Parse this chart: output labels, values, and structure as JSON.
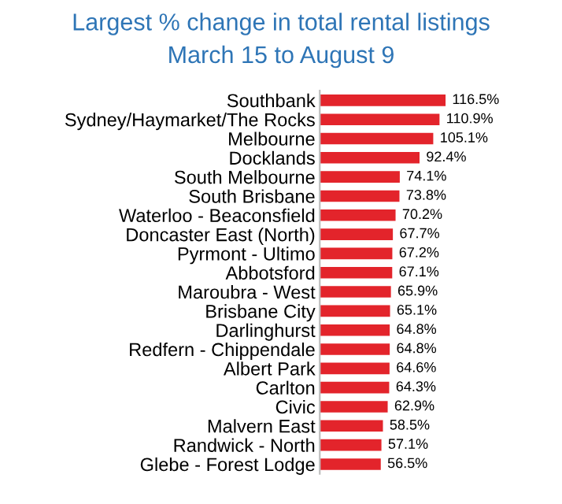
{
  "chart_data": {
    "type": "bar",
    "orientation": "horizontal",
    "title": "Largest % change in total rental listings",
    "subtitle": "March 15 to August 9",
    "categories": [
      "Southbank",
      "Sydney/Haymarket/The Rocks",
      "Melbourne",
      "Docklands",
      "South Melbourne",
      "South Brisbane",
      "Waterloo - Beaconsfield",
      "Doncaster East (North)",
      "Pyrmont - Ultimo",
      "Abbotsford",
      "Maroubra - West",
      "Brisbane City",
      "Darlinghurst",
      "Redfern - Chippendale",
      "Albert Park",
      "Carlton",
      "Civic",
      "Malvern East",
      "Randwick - North",
      "Glebe - Forest Lodge"
    ],
    "values": [
      116.5,
      110.9,
      105.1,
      92.4,
      74.1,
      73.8,
      70.2,
      67.7,
      67.2,
      67.1,
      65.9,
      65.1,
      64.8,
      64.8,
      64.6,
      64.3,
      62.9,
      58.5,
      57.1,
      56.5
    ],
    "value_labels": [
      "116.5%",
      "110.9%",
      "105.1%",
      "92.4%",
      "74.1%",
      "73.8%",
      "70.2%",
      "67.7%",
      "67.2%",
      "67.1%",
      "65.9%",
      "65.1%",
      "64.8%",
      "64.8%",
      "64.6%",
      "64.3%",
      "62.9%",
      "58.5%",
      "57.1%",
      "56.5%"
    ],
    "color": "#e3242b",
    "tick_labels": "y",
    "grid": false,
    "legend": false
  }
}
